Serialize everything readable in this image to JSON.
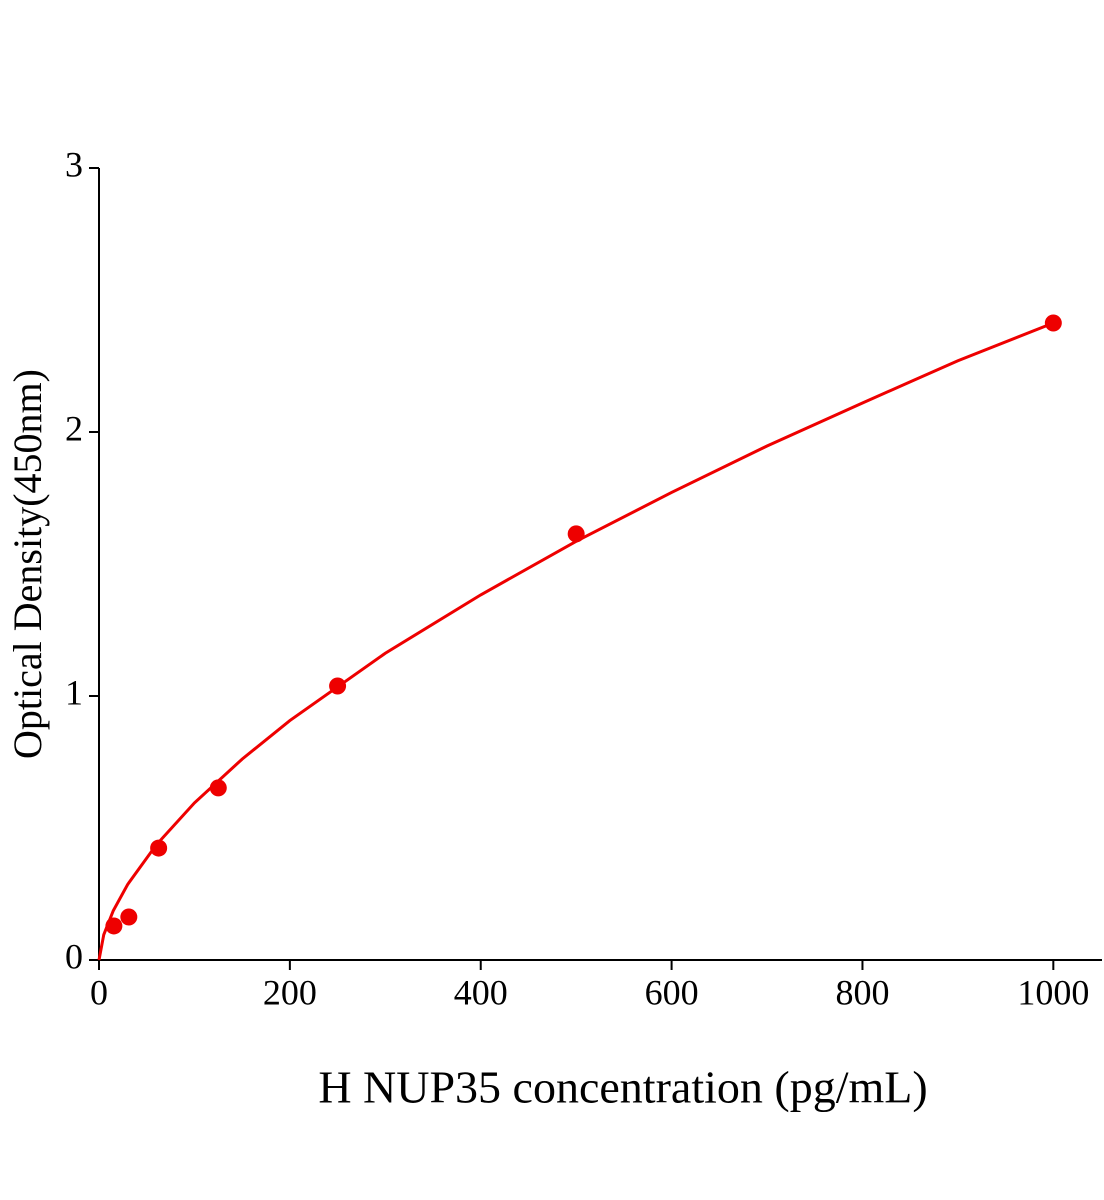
{
  "chart_data": {
    "type": "scatter",
    "x_label": "H NUP35 concentration (pg/mL)",
    "y_label": "Optical Density(450nm)",
    "x": [
      15.6,
      31.25,
      62.5,
      125,
      250,
      500,
      1000
    ],
    "values": [
      0.129,
      0.163,
      0.424,
      0.652,
      1.038,
      1.614,
      2.413
    ],
    "color": "#ee0000",
    "curve": {
      "x": [
        0,
        5,
        15,
        30,
        60,
        100,
        150,
        200,
        300,
        400,
        500,
        600,
        700,
        800,
        900,
        1000
      ],
      "values": [
        0,
        0.096,
        0.187,
        0.286,
        0.436,
        0.595,
        0.761,
        0.907,
        1.162,
        1.383,
        1.586,
        1.771,
        1.947,
        2.11,
        2.27,
        2.413
      ]
    },
    "xlim": [
      0,
      1051
    ],
    "ylim": [
      0,
      3
    ],
    "xticks": [
      0,
      200,
      400,
      600,
      800,
      1000
    ],
    "yticks": [
      0,
      1,
      2,
      3
    ]
  }
}
